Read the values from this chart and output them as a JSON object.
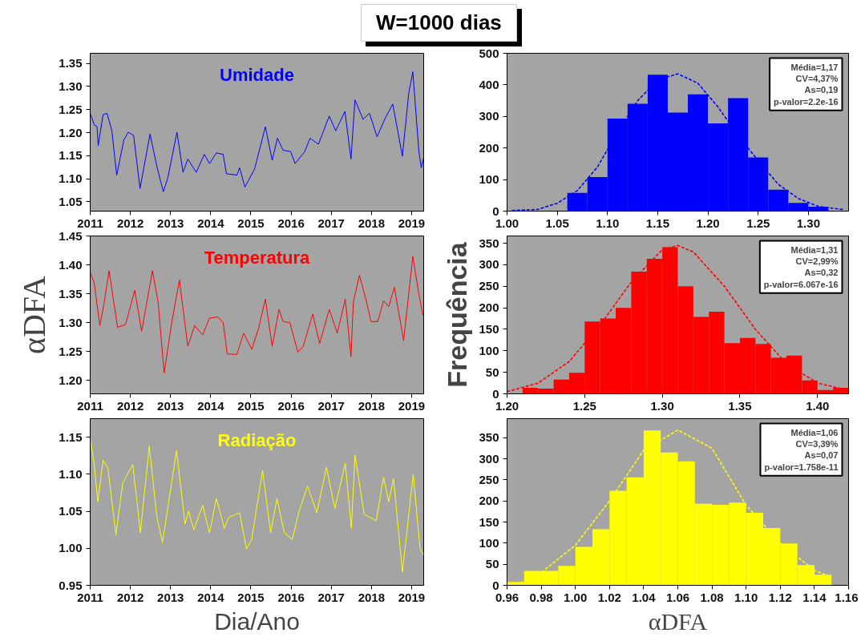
{
  "chart_data": [
    {
      "type": "line",
      "title": "W=1000 dias",
      "xlim": [
        2011,
        2019.3
      ],
      "ylim": [
        1.03,
        1.372
      ],
      "xticks": [
        2011,
        2012,
        2013,
        2014,
        2015,
        2016,
        2017,
        2018,
        2019
      ],
      "yticks": [
        {
          "value": 1.05,
          "label": "1.05"
        },
        {
          "value": 1.1,
          "label": "1.10"
        },
        {
          "value": 1.15,
          "label": "1.15"
        },
        {
          "value": 1.2,
          "label": "1.20"
        },
        {
          "value": 1.25,
          "label": "1.25"
        },
        {
          "value": 1.3,
          "label": "1.30"
        },
        {
          "value": 1.35,
          "label": "1.35"
        }
      ],
      "series": [
        {
          "name": "Umidade",
          "color": "#0000ff",
          "x": [
            2011.0,
            2011.1,
            2011.17,
            2011.2,
            2011.32,
            2011.42,
            2011.54,
            2011.66,
            2011.84,
            2011.95,
            2012.08,
            2012.24,
            2012.49,
            2012.66,
            2012.82,
            2012.93,
            2013.16,
            2013.31,
            2013.43,
            2013.64,
            2013.84,
            2013.97,
            2014.14,
            2014.31,
            2014.39,
            2014.65,
            2014.72,
            2014.85,
            2015.09,
            2015.36,
            2015.53,
            2015.66,
            2015.8,
            2015.99,
            2016.1,
            2016.34,
            2016.47,
            2016.68,
            2016.95,
            2017.11,
            2017.34,
            2017.49,
            2017.59,
            2017.79,
            2017.95,
            2018.14,
            2018.35,
            2018.53,
            2018.77,
            2018.93,
            2019.03,
            2019.18,
            2019.24,
            2019.3
          ],
          "values": [
            1.242,
            1.217,
            1.213,
            1.172,
            1.239,
            1.242,
            1.204,
            1.108,
            1.185,
            1.201,
            1.194,
            1.079,
            1.197,
            1.127,
            1.072,
            1.101,
            1.201,
            1.114,
            1.143,
            1.114,
            1.153,
            1.133,
            1.156,
            1.153,
            1.111,
            1.108,
            1.124,
            1.082,
            1.121,
            1.213,
            1.14,
            1.188,
            1.162,
            1.159,
            1.133,
            1.159,
            1.188,
            1.175,
            1.236,
            1.204,
            1.246,
            1.143,
            1.271,
            1.229,
            1.242,
            1.191,
            1.233,
            1.262,
            1.149,
            1.287,
            1.332,
            1.159,
            1.124,
            1.146
          ]
        }
      ]
    },
    {
      "type": "histogram",
      "xlim": [
        1.0,
        1.34
      ],
      "ylim": [
        0,
        500
      ],
      "xticks": [
        {
          "value": 1.0,
          "label": "1.00"
        },
        {
          "value": 1.05,
          "label": "1.05"
        },
        {
          "value": 1.1,
          "label": "1.10"
        },
        {
          "value": 1.15,
          "label": "1.15"
        },
        {
          "value": 1.2,
          "label": "1.20"
        },
        {
          "value": 1.25,
          "label": "1.25"
        },
        {
          "value": 1.3,
          "label": "1.30"
        }
      ],
      "yticks": [
        0,
        100,
        200,
        300,
        400,
        500
      ],
      "annotations": [
        "Média=1,17",
        "CV=4,37%",
        "As=0,19",
        "p-valor=2.2e-16"
      ],
      "series": [
        {
          "type": "histogram",
          "color": "#0000ff",
          "bins": [
            1.06,
            1.08,
            1.1,
            1.12,
            1.14,
            1.16,
            1.18,
            1.2,
            1.22,
            1.24,
            1.26,
            1.28,
            1.3,
            1.32
          ],
          "values": [
            58,
            108,
            293,
            340,
            432,
            312,
            370,
            278,
            358,
            170,
            68,
            26,
            14
          ]
        },
        {
          "type": "line",
          "color": "#0000ff",
          "line_style": "dashed",
          "x": [
            1.005,
            1.03,
            1.05,
            1.07,
            1.09,
            1.11,
            1.13,
            1.15,
            1.17,
            1.19,
            1.21,
            1.23,
            1.25,
            1.27,
            1.29,
            1.31,
            1.335
          ],
          "values": [
            2,
            5,
            25,
            65,
            140,
            250,
            350,
            415,
            435,
            405,
            330,
            240,
            160,
            85,
            40,
            15,
            5
          ]
        }
      ]
    },
    {
      "type": "line",
      "ylabel": "αDFA",
      "xlim": [
        2011,
        2019.3
      ],
      "ylim": [
        1.177,
        1.45
      ],
      "xticks": [
        2011,
        2012,
        2013,
        2014,
        2015,
        2016,
        2017,
        2018,
        2019
      ],
      "yticks": [
        {
          "value": 1.2,
          "label": "1.20"
        },
        {
          "value": 1.25,
          "label": "1.25"
        },
        {
          "value": 1.3,
          "label": "1.30"
        },
        {
          "value": 1.35,
          "label": "1.35"
        },
        {
          "value": 1.4,
          "label": "1.40"
        },
        {
          "value": 1.45,
          "label": "1.45"
        }
      ],
      "series": [
        {
          "name": "Temperatura",
          "color": "#ff0000",
          "x": [
            2011.0,
            2011.1,
            2011.24,
            2011.34,
            2011.47,
            2011.68,
            2011.88,
            2012.11,
            2012.28,
            2012.55,
            2012.69,
            2012.84,
            2013.03,
            2013.22,
            2013.43,
            2013.6,
            2013.8,
            2013.97,
            2014.18,
            2014.31,
            2014.41,
            2014.65,
            2014.82,
            2015.02,
            2015.19,
            2015.36,
            2015.53,
            2015.7,
            2015.8,
            2015.97,
            2016.17,
            2016.3,
            2016.54,
            2016.71,
            2016.95,
            2017.15,
            2017.35,
            2017.49,
            2017.55,
            2017.7,
            2017.86,
            2017.99,
            2018.16,
            2018.3,
            2018.43,
            2018.57,
            2018.8,
            2019.03,
            2019.18,
            2019.28
          ],
          "values": [
            1.387,
            1.369,
            1.295,
            1.331,
            1.39,
            1.292,
            1.297,
            1.356,
            1.285,
            1.39,
            1.336,
            1.213,
            1.3,
            1.374,
            1.259,
            1.295,
            1.279,
            1.308,
            1.31,
            1.3,
            1.246,
            1.245,
            1.282,
            1.254,
            1.29,
            1.341,
            1.259,
            1.323,
            1.302,
            1.3,
            1.249,
            1.259,
            1.315,
            1.264,
            1.323,
            1.282,
            1.341,
            1.241,
            1.336,
            1.382,
            1.341,
            1.302,
            1.302,
            1.338,
            1.328,
            1.361,
            1.269,
            1.415,
            1.349,
            1.313
          ]
        }
      ]
    },
    {
      "type": "histogram",
      "ylabel": "Frequência",
      "xlim": [
        1.2,
        1.42
      ],
      "ylim": [
        0,
        367
      ],
      "xticks": [
        {
          "value": 1.2,
          "label": "1.20"
        },
        {
          "value": 1.25,
          "label": "1.25"
        },
        {
          "value": 1.3,
          "label": "1.30"
        },
        {
          "value": 1.35,
          "label": "1.35"
        },
        {
          "value": 1.4,
          "label": "1.40"
        }
      ],
      "yticks": [
        0,
        50,
        100,
        150,
        200,
        250,
        300,
        350
      ],
      "annotations": [
        "Média=1,31",
        "CV=2,99%",
        "As=0,32",
        "p-valor=6.067e-16"
      ],
      "series": [
        {
          "type": "histogram",
          "color": "#ff0000",
          "bins": [
            1.21,
            1.22,
            1.23,
            1.24,
            1.25,
            1.26,
            1.27,
            1.28,
            1.29,
            1.3,
            1.31,
            1.32,
            1.33,
            1.34,
            1.35,
            1.36,
            1.37,
            1.38,
            1.39,
            1.4,
            1.41,
            1.42
          ],
          "values": [
            14,
            12,
            33,
            49,
            168,
            175,
            200,
            284,
            314,
            341,
            250,
            179,
            191,
            118,
            130,
            116,
            84,
            89,
            31,
            9,
            14
          ]
        },
        {
          "type": "line",
          "color": "#ff0000",
          "line_style": "dashed",
          "x": [
            1.2,
            1.22,
            1.24,
            1.26,
            1.28,
            1.3,
            1.31,
            1.32,
            1.34,
            1.36,
            1.38,
            1.4,
            1.42
          ],
          "values": [
            5,
            25,
            75,
            160,
            260,
            335,
            345,
            330,
            250,
            150,
            70,
            25,
            8
          ]
        }
      ]
    },
    {
      "type": "line",
      "xlabel": "Dia/Ano",
      "xlim": [
        2011,
        2019.3
      ],
      "ylim": [
        0.95,
        1.175
      ],
      "xticks": [
        2011,
        2012,
        2013,
        2014,
        2015,
        2016,
        2017,
        2018,
        2019
      ],
      "yticks": [
        {
          "value": 0.95,
          "label": "0.95"
        },
        {
          "value": 1.0,
          "label": "1.00"
        },
        {
          "value": 1.05,
          "label": "1.05"
        },
        {
          "value": 1.1,
          "label": "1.10"
        },
        {
          "value": 1.15,
          "label": "1.15"
        }
      ],
      "series": [
        {
          "name": "Radiação",
          "color": "#ffff00",
          "x": [
            2011.0,
            2011.1,
            2011.19,
            2011.32,
            2011.44,
            2011.64,
            2011.81,
            2012.06,
            2012.25,
            2012.47,
            2012.66,
            2012.8,
            2013.15,
            2013.36,
            2013.45,
            2013.58,
            2013.8,
            2013.97,
            2014.14,
            2014.34,
            2014.45,
            2014.72,
            2014.89,
            2015.02,
            2015.29,
            2015.49,
            2015.65,
            2015.83,
            2016.03,
            2016.2,
            2016.41,
            2016.64,
            2016.88,
            2017.09,
            2017.35,
            2017.5,
            2017.59,
            2017.82,
            2018.12,
            2018.3,
            2018.43,
            2018.55,
            2018.77,
            2019.04,
            2019.21,
            2019.3
          ],
          "values": [
            1.149,
            1.113,
            1.063,
            1.119,
            1.109,
            1.018,
            1.088,
            1.113,
            1.021,
            1.138,
            1.042,
            1.008,
            1.132,
            1.033,
            1.05,
            1.025,
            1.058,
            1.021,
            1.067,
            1.027,
            1.042,
            1.048,
            0.999,
            1.012,
            1.105,
            1.021,
            1.067,
            1.021,
            1.012,
            1.05,
            1.084,
            1.048,
            1.109,
            1.054,
            1.115,
            1.027,
            1.126,
            1.046,
            1.037,
            1.096,
            1.063,
            1.094,
            0.968,
            1.1,
            0.999,
            0.991
          ]
        }
      ]
    },
    {
      "type": "histogram",
      "xlabel": "αDFA",
      "xlim": [
        0.96,
        1.16
      ],
      "ylim": [
        0,
        395
      ],
      "xticks": [
        {
          "value": 0.96,
          "label": "0.96"
        },
        {
          "value": 0.98,
          "label": "0.98"
        },
        {
          "value": 1.0,
          "label": "1.00"
        },
        {
          "value": 1.02,
          "label": "1.02"
        },
        {
          "value": 1.04,
          "label": "1.04"
        },
        {
          "value": 1.06,
          "label": "1.06"
        },
        {
          "value": 1.08,
          "label": "1.08"
        },
        {
          "value": 1.1,
          "label": "1.10"
        },
        {
          "value": 1.12,
          "label": "1.12"
        },
        {
          "value": 1.14,
          "label": "1.14"
        },
        {
          "value": 1.16,
          "label": "1.16"
        }
      ],
      "yticks": [
        0,
        50,
        100,
        150,
        200,
        250,
        300,
        350
      ],
      "annotations": [
        "Média=1,06",
        "CV=3,39%",
        "As=0,07",
        "p-valor=1.758e-11"
      ],
      "series": [
        {
          "type": "histogram",
          "color": "#ffff00",
          "bins": [
            0.96,
            0.97,
            0.98,
            0.99,
            1.0,
            1.01,
            1.02,
            1.03,
            1.04,
            1.05,
            1.06,
            1.07,
            1.08,
            1.09,
            1.1,
            1.11,
            1.12,
            1.13,
            1.14,
            1.15
          ],
          "values": [
            8,
            34,
            34,
            46,
            91,
            133,
            224,
            256,
            367,
            315,
            294,
            193,
            191,
            196,
            172,
            136,
            99,
            48,
            25
          ]
        },
        {
          "type": "line",
          "color": "#ffff00",
          "line_style": "dashed",
          "x": [
            0.965,
            0.98,
            1.0,
            1.02,
            1.04,
            1.06,
            1.08,
            1.1,
            1.12,
            1.14,
            1.15
          ],
          "values": [
            0,
            30,
            95,
            200,
            320,
            368,
            325,
            190,
            100,
            35,
            20
          ]
        }
      ]
    }
  ]
}
